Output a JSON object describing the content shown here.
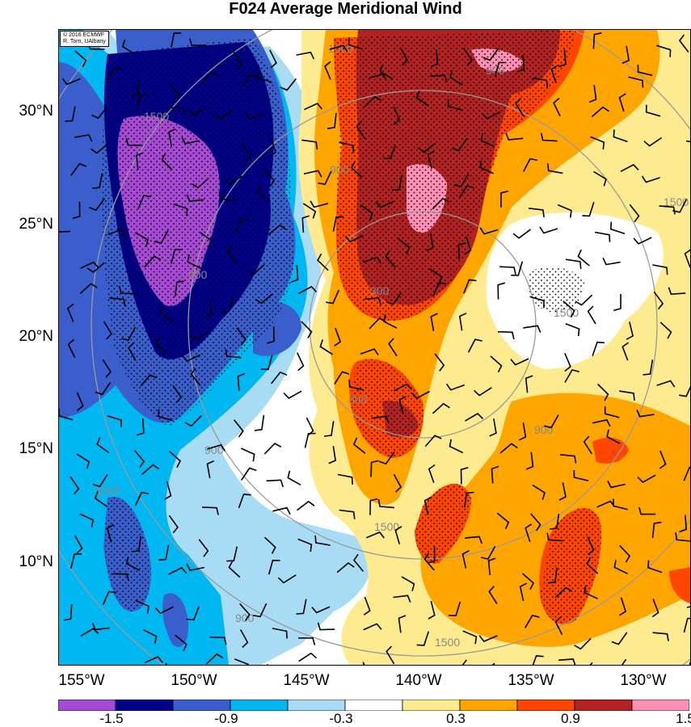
{
  "title": "F024 Average Meridional Wind",
  "credit": [
    "© 2016 ECMWF",
    "R. Torn, UAlbany"
  ],
  "lat_labels": [
    "30°N",
    "25°N",
    "20°N",
    "15°N",
    "10°N"
  ],
  "lon_labels": [
    "155°W",
    "150°W",
    "145°W",
    "140°W",
    "135°W",
    "130°W"
  ],
  "colorbar": {
    "labels": [
      "-1.5",
      "-0.9",
      "-0.3",
      "0.3",
      "0.9",
      "1.5"
    ],
    "colors": [
      "#a64ad6",
      "#00008b",
      "#3a5fcd",
      "#00b7f2",
      "#a8dcf5",
      "#ffffff",
      "#ffeb8f",
      "#ffa500",
      "#ff4500",
      "#b22222",
      "#ff8fb4"
    ]
  },
  "contour_labels": [
    "1500",
    "1500",
    "900",
    "900",
    "300",
    "300",
    "900",
    "900",
    "1500",
    "1500",
    "1500",
    "900",
    "900",
    "1500",
    "1500"
  ],
  "colors": {
    "ring": "#9a9a9a",
    "stipple": "#000000",
    "barb": "#000000"
  }
}
